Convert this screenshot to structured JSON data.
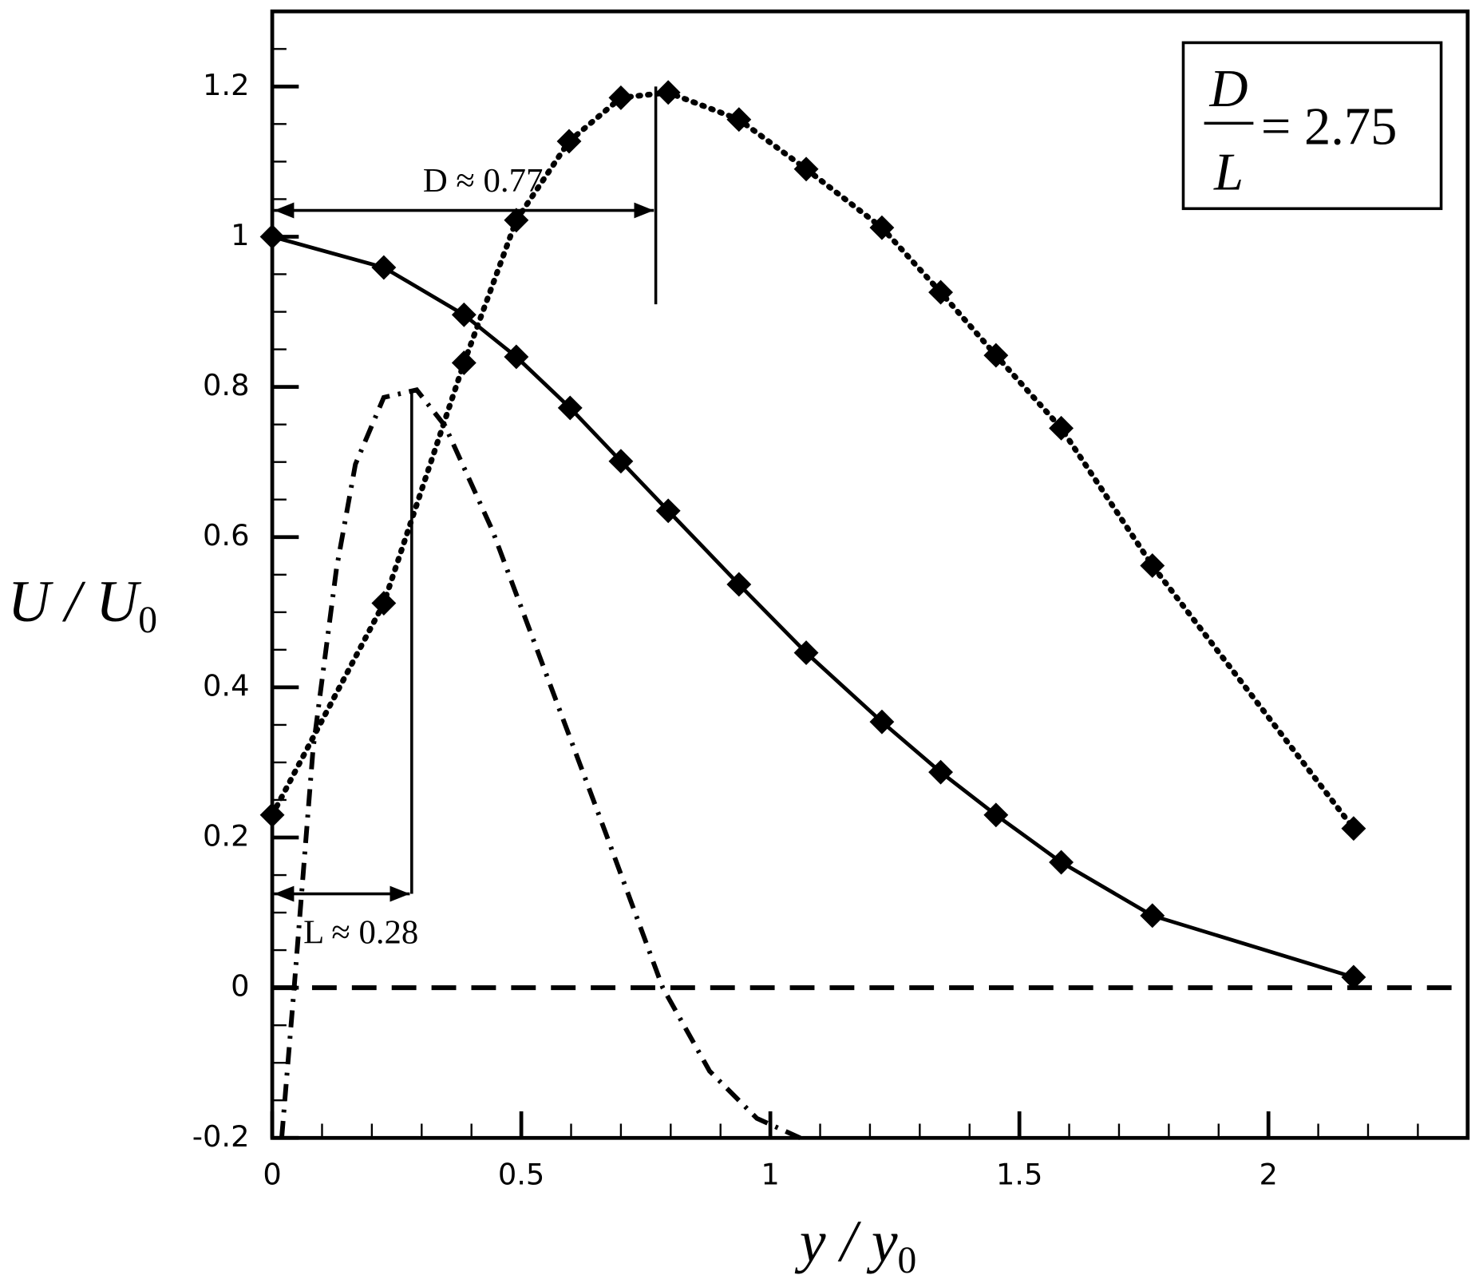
{
  "chart_data": {
    "type": "line",
    "x_label": "y / y",
    "x_label_subscript": "0",
    "y_label": "U / U",
    "y_label_subscript": "0",
    "xlim": [
      0,
      2.4
    ],
    "xticks": [
      0,
      0.5,
      1,
      1.5,
      2
    ],
    "x_minor_divisions": 5,
    "ylim": [
      -0.2,
      1.3
    ],
    "yticks": [
      -0.2,
      0,
      0.2,
      0.4,
      0.6,
      0.8,
      1,
      1.2
    ],
    "y_minor_divisions": 4,
    "series": [
      {
        "color": "#000000",
        "style": "solid",
        "markers": true,
        "x": [
          0,
          0.224,
          0.385,
          0.49,
          0.598,
          0.7,
          0.795,
          0.937,
          1.072,
          1.224,
          1.342,
          1.453,
          1.584,
          1.767,
          2.171
        ],
        "values": [
          1.0,
          0.959,
          0.896,
          0.84,
          0.772,
          0.701,
          0.635,
          0.537,
          0.446,
          0.354,
          0.287,
          0.23,
          0.167,
          0.096,
          0.014
        ]
      },
      {
        "color": "#000000",
        "style": "dotted",
        "markers": true,
        "x": [
          0,
          0.224,
          0.385,
          0.49,
          0.596,
          0.7,
          0.795,
          0.937,
          1.072,
          1.224,
          1.342,
          1.453,
          1.584,
          1.767,
          2.171
        ],
        "values": [
          0.23,
          0.512,
          0.832,
          1.022,
          1.127,
          1.185,
          1.192,
          1.156,
          1.09,
          1.012,
          0.926,
          0.842,
          0.745,
          0.562,
          0.212
        ]
      },
      {
        "color": "#000000",
        "style": "dashdot",
        "markers": false,
        "x": [
          0.019,
          0.044,
          0.082,
          0.129,
          0.167,
          0.224,
          0.29,
          0.347,
          0.442,
          0.556,
          0.67,
          0.784,
          0.878,
          0.973,
          1.06
        ],
        "values": [
          -0.2,
          0,
          0.318,
          0.558,
          0.697,
          0.786,
          0.796,
          0.748,
          0.609,
          0.407,
          0.205,
          0,
          -0.111,
          -0.174,
          -0.2
        ]
      },
      {
        "color": "#000000",
        "style": "dashed",
        "markers": false,
        "x": [
          0,
          2.4
        ],
        "values": [
          0,
          0
        ]
      }
    ],
    "annotations": [
      {
        "text": "D ≈ 0.77",
        "x": 0.77,
        "y": 1.035,
        "y_range": [
          0.91,
          1.2
        ]
      },
      {
        "text": "L ≈ 0.28",
        "x": 0.28,
        "y": 0.125,
        "y_range": [
          0.125,
          0.796
        ]
      }
    ],
    "ratio_label": {
      "numerator": "D",
      "denominator": "L",
      "value": "= 2.75"
    }
  }
}
